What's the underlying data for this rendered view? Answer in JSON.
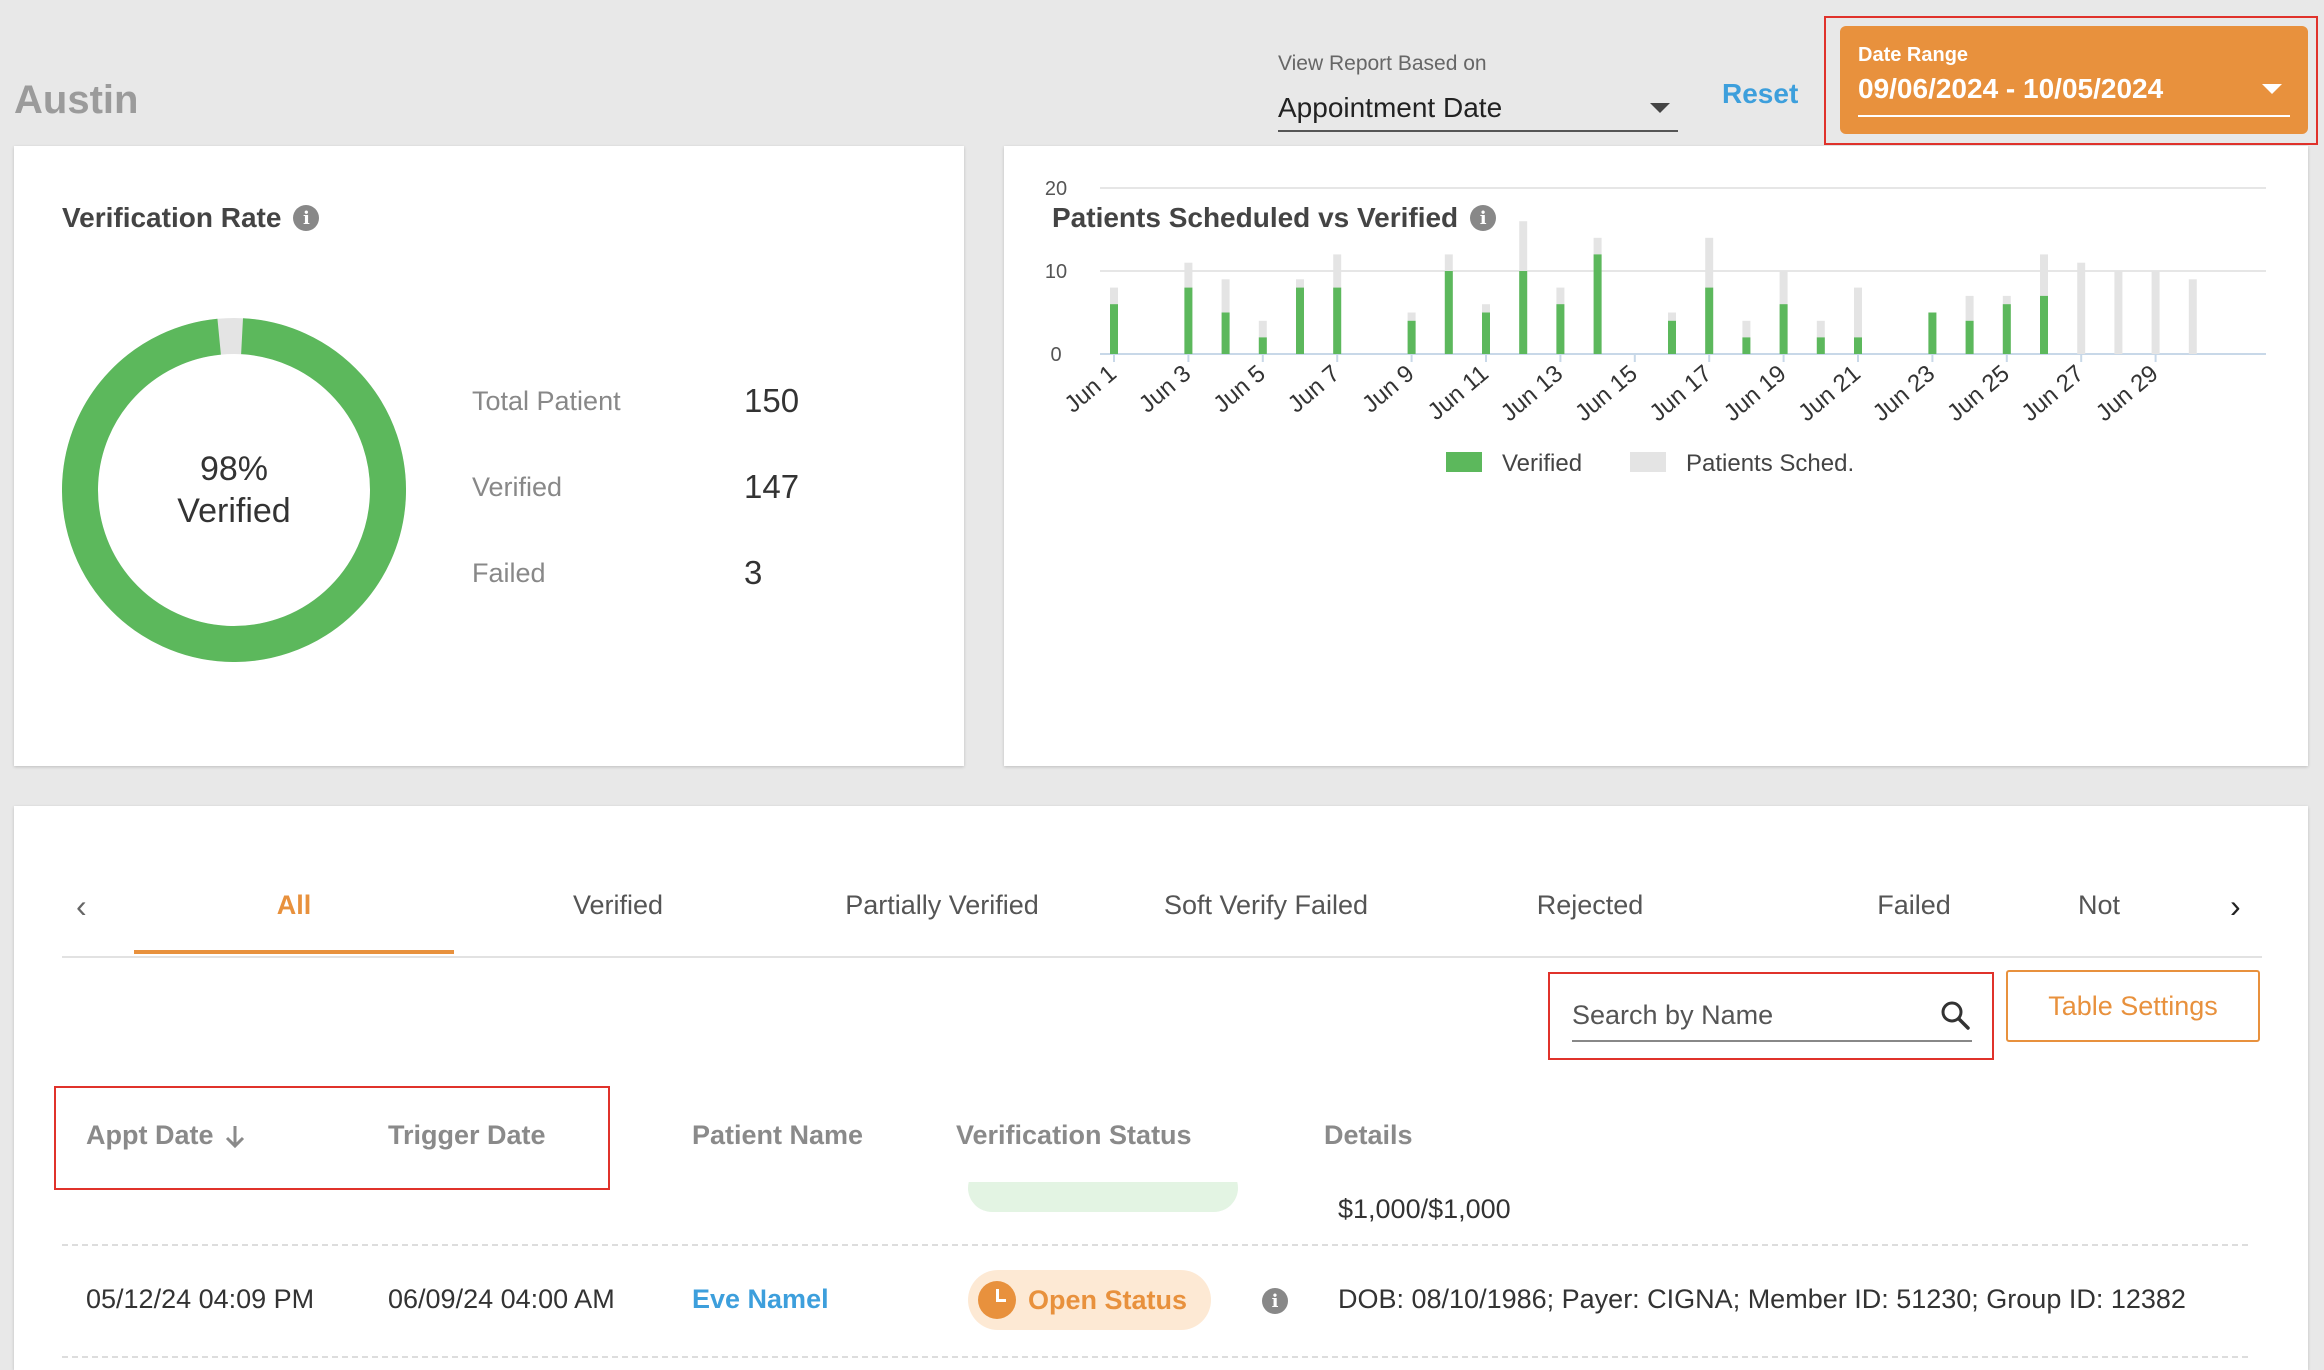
{
  "header": {
    "location": "Austin",
    "view_report_label": "View Report Based on",
    "view_report_value": "Appointment Date",
    "reset_label": "Reset",
    "date_range_label": "Date Range",
    "date_range_value": "09/06/2024 - 10/05/2024"
  },
  "verification_rate": {
    "title": "Verification Rate",
    "percent_label": "98%",
    "verified_word": "Verified",
    "verified_fraction": 0.98,
    "stats": [
      {
        "label": "Total Patient",
        "value": "150"
      },
      {
        "label": "Verified",
        "value": "147"
      },
      {
        "label": "Failed",
        "value": "3"
      }
    ]
  },
  "scheduled_chart": {
    "title": "Patients Scheduled vs Verified",
    "legend": [
      "Verified",
      "Patients Sched."
    ]
  },
  "chart_data": {
    "type": "bar",
    "title": "Patients Scheduled vs Verified",
    "xlabel": "",
    "ylabel": "",
    "ylim": [
      0,
      20
    ],
    "yticks": [
      0,
      10,
      20
    ],
    "categories": [
      "Jun 1",
      "Jun 2",
      "Jun 3",
      "Jun 4",
      "Jun 5",
      "Jun 6",
      "Jun 7",
      "Jun 8",
      "Jun 9",
      "Jun 10",
      "Jun 11",
      "Jun 12",
      "Jun 13",
      "Jun 14",
      "Jun 15",
      "Jun 16",
      "Jun 17",
      "Jun 18",
      "Jun 19",
      "Jun 20",
      "Jun 21",
      "Jun 22",
      "Jun 23",
      "Jun 24",
      "Jun 25",
      "Jun 26",
      "Jun 27",
      "Jun 28",
      "Jun 29",
      "Jun 30"
    ],
    "tick_labels": [
      "Jun 1",
      "Jun 3",
      "Jun 5",
      "Jun 7",
      "Jun 9",
      "Jun 11",
      "Jun 13",
      "Jun 15",
      "Jun 17",
      "Jun 19",
      "Jun 21",
      "Jun 23",
      "Jun 25",
      "Jun 27",
      "Jun 29"
    ],
    "series": [
      {
        "name": "Verified",
        "color": "#5cb85c",
        "values": [
          6,
          0,
          8,
          5,
          2,
          8,
          8,
          0,
          4,
          10,
          5,
          10,
          6,
          12,
          0,
          4,
          8,
          2,
          6,
          2,
          2,
          0,
          5,
          4,
          6,
          7,
          0,
          0,
          0,
          0
        ]
      },
      {
        "name": "Patients Sched.",
        "color": "#e4e4e4",
        "values": [
          8,
          0,
          11,
          9,
          4,
          9,
          12,
          0,
          5,
          12,
          6,
          16,
          8,
          14,
          0,
          5,
          14,
          4,
          10,
          4,
          8,
          0,
          5,
          7,
          7,
          12,
          11,
          10,
          10,
          9
        ]
      }
    ],
    "legend_position": "bottom",
    "grid": true
  },
  "table": {
    "tabs": [
      "All",
      "Verified",
      "Partially Verified",
      "Soft Verify Failed",
      "Rejected",
      "Failed",
      "Not"
    ],
    "active_tab": "All",
    "search_placeholder": "Search by Name",
    "table_settings_label": "Table Settings",
    "columns": [
      "Appt Date",
      "Trigger Date",
      "Patient Name",
      "Verification Status",
      "Details"
    ],
    "partial_row_details": "$1,000/$1,000",
    "rows": [
      {
        "appt_date": "05/12/24 04:09 PM",
        "trigger_date": "06/09/24 04:00 AM",
        "patient_name": "Eve Namel",
        "status": "Open Status",
        "details": "DOB: 08/10/1986; Payer: CIGNA; Member ID: 51230; Group ID: 12382"
      }
    ]
  },
  "colors": {
    "accent": "#e8913d",
    "link": "#3d9fdc",
    "verified_green": "#5cb85c",
    "highlight_red": "#e0322b"
  }
}
